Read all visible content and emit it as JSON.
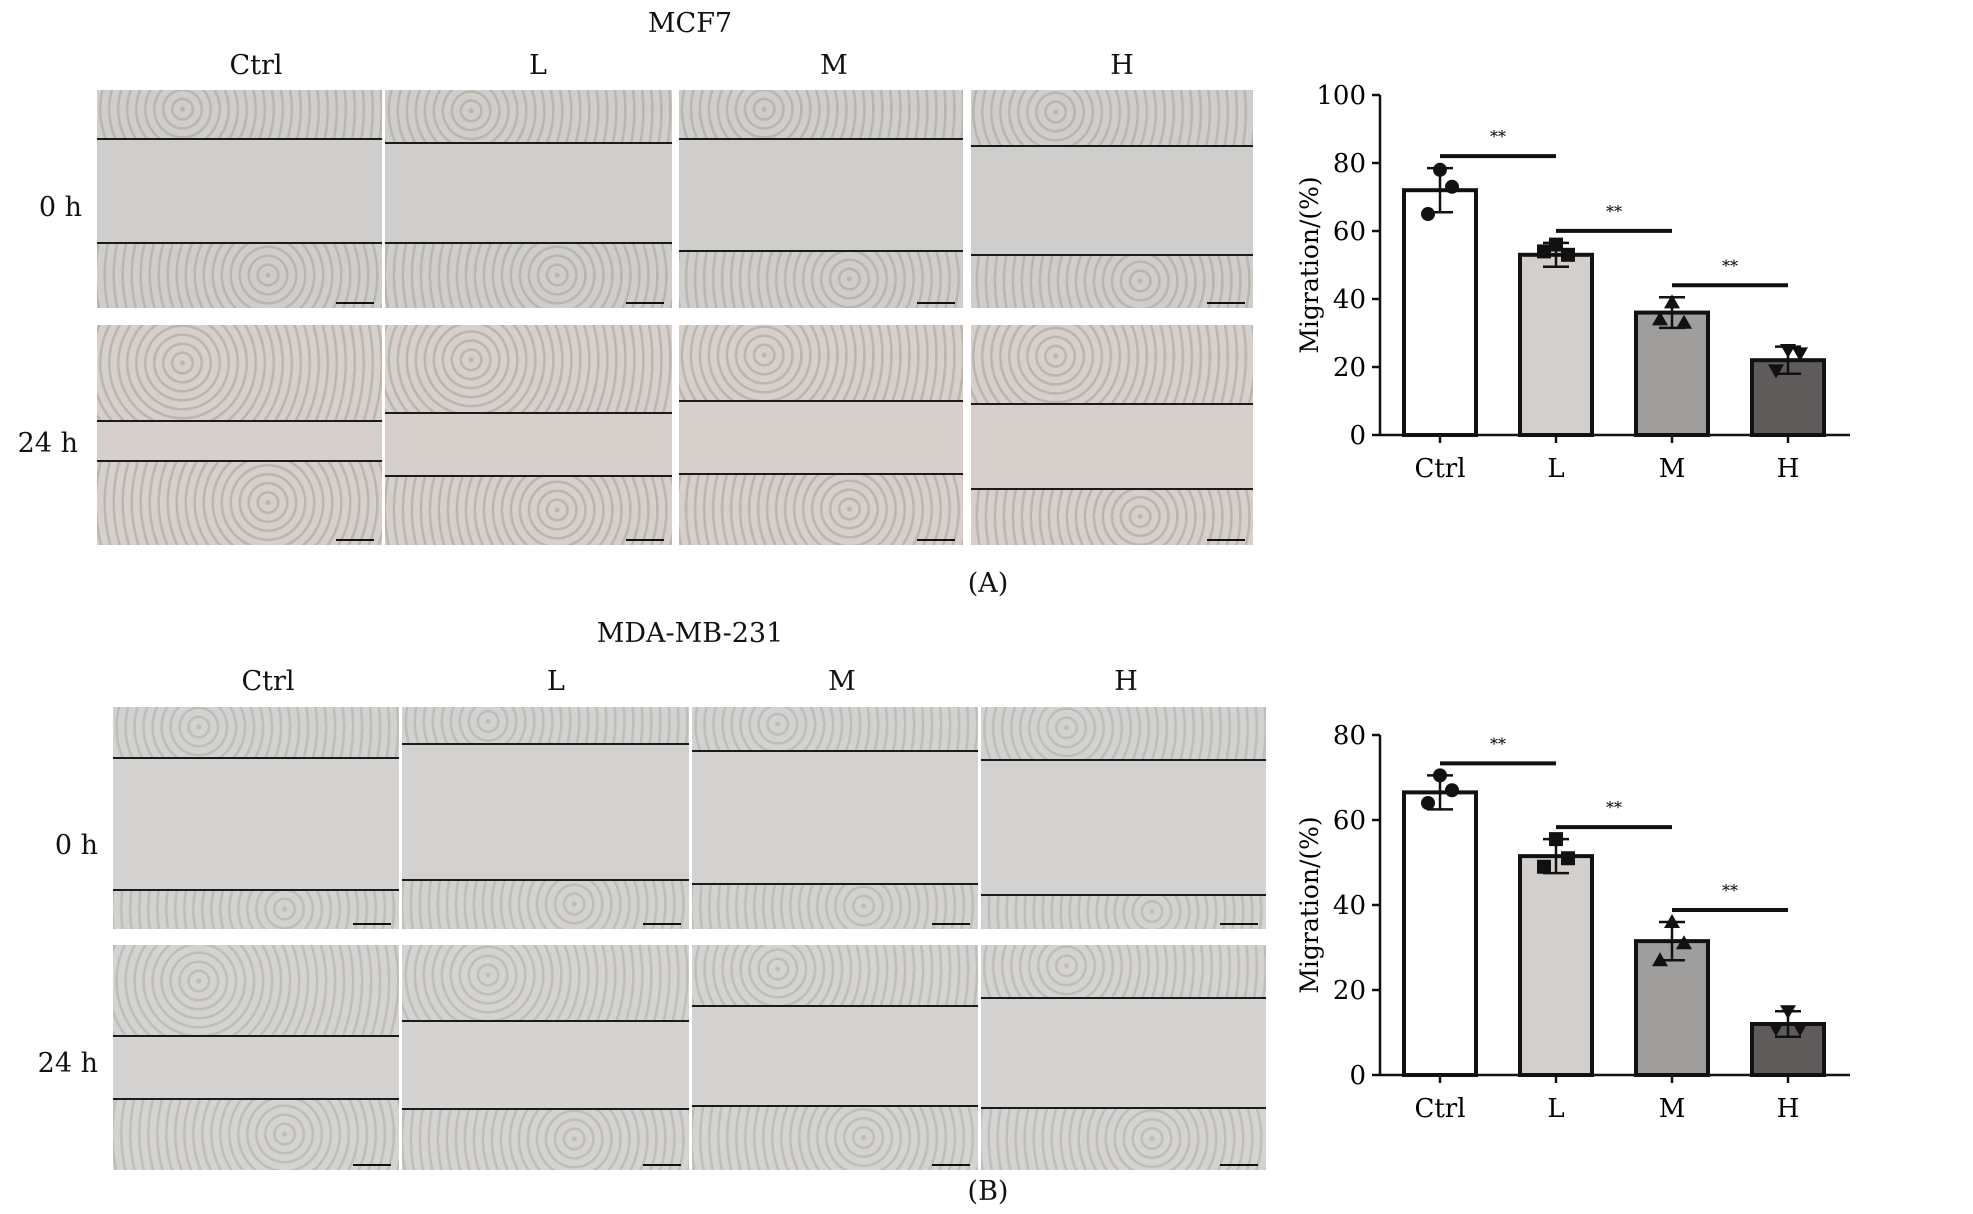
{
  "panels": [
    {
      "id": "A",
      "title": "MCF7",
      "label": "(A)",
      "columns": [
        "Ctrl",
        "L",
        "M",
        "H"
      ],
      "rows": [
        "0 h",
        "24 h"
      ],
      "colors": {
        "bg0": "#cfcecd",
        "bg24": "#d6cfcb",
        "cells": "#b9b6ae"
      },
      "chart_data": {
        "type": "bar",
        "categories": [
          "Ctrl",
          "L",
          "M",
          "H"
        ],
        "values": [
          72,
          53,
          36,
          22
        ],
        "errors": [
          6.5,
          3.5,
          4.5,
          4
        ],
        "points": [
          [
            78,
            73,
            65
          ],
          [
            56,
            53,
            54
          ],
          [
            39,
            33,
            34
          ],
          [
            25,
            24,
            19
          ]
        ],
        "markers": [
          "circle",
          "square",
          "triangle",
          "triangle-down"
        ],
        "bar_colors": [
          "#ffffff",
          "#d2cfcc",
          "#a09e9d",
          "#5e5b5a"
        ],
        "significance": [
          "**",
          "**",
          "**"
        ],
        "ylabel": "Migration/(%)",
        "ylim": [
          0,
          100
        ],
        "yticks": [
          0,
          20,
          40,
          60,
          80,
          100
        ]
      }
    },
    {
      "id": "B",
      "title": "MDA-MB-231",
      "label": "(B)",
      "columns": [
        "Ctrl",
        "L",
        "M",
        "H"
      ],
      "rows": [
        "0 h",
        "24 h"
      ],
      "colors": {
        "bg0": "#d3d2d0",
        "bg24": "#d4d3d1",
        "cells": "#bebdba"
      },
      "chart_data": {
        "type": "bar",
        "categories": [
          "Ctrl",
          "L",
          "M",
          "H"
        ],
        "values": [
          66.5,
          51.5,
          31.5,
          12
        ],
        "errors": [
          4,
          4,
          4.5,
          3
        ],
        "points": [
          [
            70.5,
            67,
            64
          ],
          [
            55.5,
            51,
            49
          ],
          [
            36,
            31,
            27
          ],
          [
            15,
            11,
            11
          ]
        ],
        "markers": [
          "circle",
          "square",
          "triangle",
          "triangle-down"
        ],
        "bar_colors": [
          "#ffffff",
          "#d2cfcc",
          "#a09e9d",
          "#5e5b5a"
        ],
        "significance": [
          "**",
          "**",
          "**"
        ],
        "ylabel": "Migration/(%)",
        "ylim": [
          0,
          80
        ],
        "yticks": [
          0,
          20,
          40,
          60,
          80
        ]
      }
    }
  ]
}
